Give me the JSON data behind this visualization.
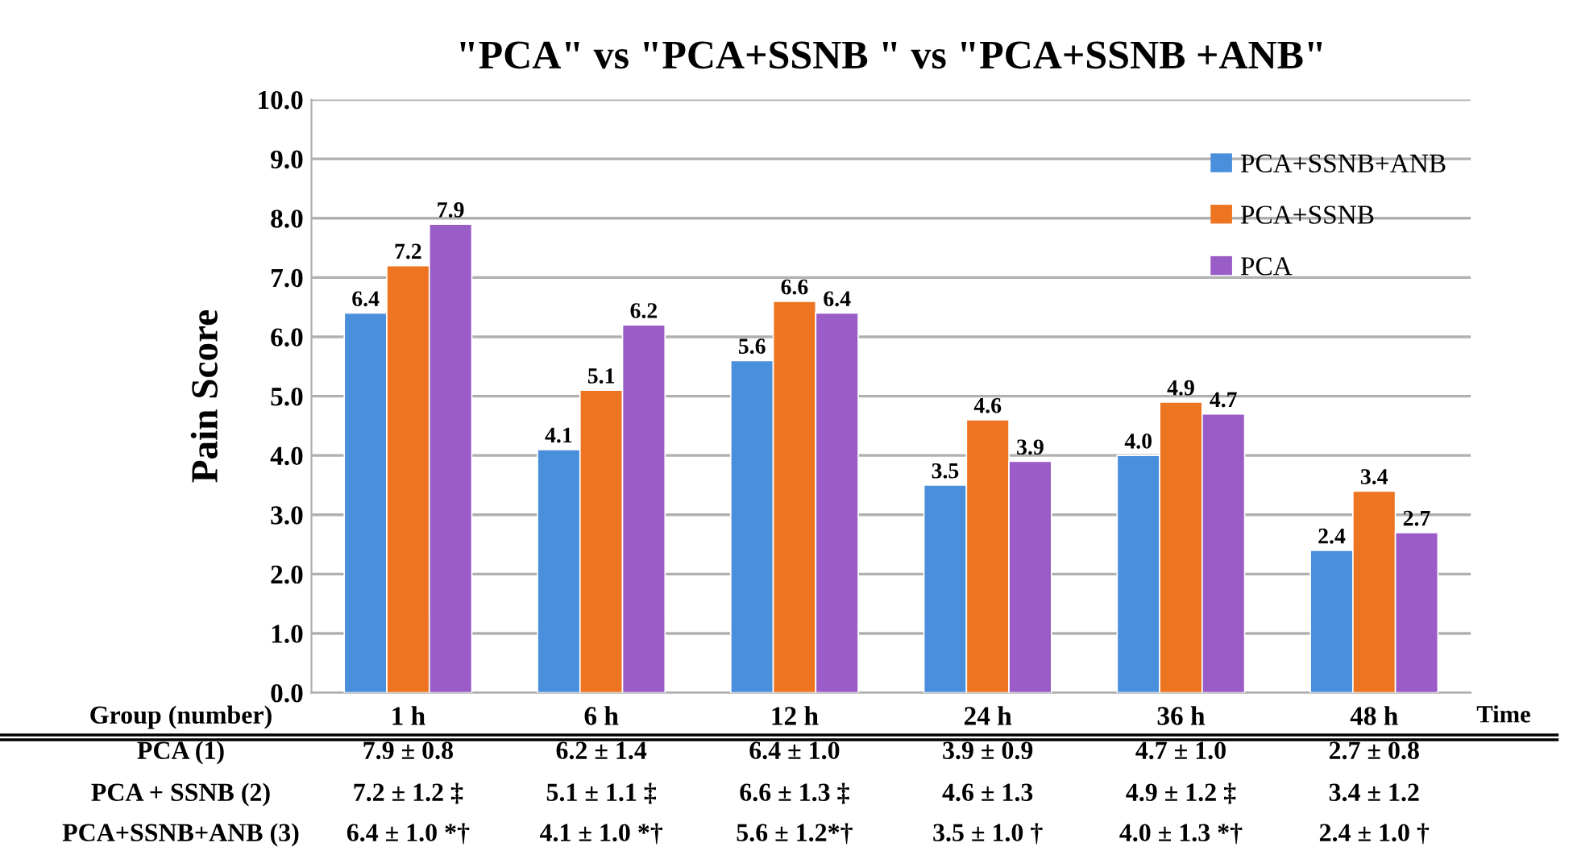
{
  "chart_data": {
    "type": "bar",
    "title": "\"PCA\" vs \"PCA+SSNB \" vs \"PCA+SSNB +ANB\"",
    "ylabel": "Pain Score",
    "xlabel": "Time",
    "categories": [
      "1 h",
      "6 h",
      "12 h",
      "24 h",
      "36 h",
      "48 h"
    ],
    "series": [
      {
        "name": "PCA+SSNB+ANB",
        "color": "#4a8fdc",
        "values": [
          6.4,
          4.1,
          5.6,
          3.5,
          4.0,
          2.4
        ],
        "value_labels": [
          "6.4",
          "4.1",
          "5.6",
          "3.5",
          "4.0",
          "2.4"
        ]
      },
      {
        "name": "PCA+SSNB",
        "color": "#ed7420",
        "values": [
          7.2,
          5.1,
          6.6,
          4.6,
          4.9,
          3.4
        ],
        "value_labels": [
          "7.2",
          "5.1",
          "6.6",
          "4.6",
          "4.9",
          "3.4"
        ]
      },
      {
        "name": "PCA",
        "color": "#9a5cc6",
        "values": [
          7.9,
          6.2,
          6.4,
          3.9,
          4.7,
          2.7
        ],
        "value_labels": [
          "7.9",
          "6.2",
          "6.4",
          "3.9",
          "4.7",
          "2.7"
        ]
      }
    ],
    "ylim": [
      0,
      10
    ],
    "yticks": [
      {
        "value": 0,
        "label": "0.0"
      },
      {
        "value": 1,
        "label": "1.0"
      },
      {
        "value": 2,
        "label": "2.0"
      },
      {
        "value": 3,
        "label": "3.0"
      },
      {
        "value": 4,
        "label": "4.0"
      },
      {
        "value": 5,
        "label": "5.0"
      },
      {
        "value": 6,
        "label": "6.0"
      },
      {
        "value": 7,
        "label": "7.0"
      },
      {
        "value": 8,
        "label": "8.0"
      },
      {
        "value": 9,
        "label": "9.0"
      },
      {
        "value": 10,
        "label": "10.0"
      }
    ],
    "grid": "y",
    "legend": "top right",
    "annotations": [
      "Group (number)",
      "PCA (1)",
      "7.9 ± 0.8",
      "6.2 ± 1.4",
      "6.4 ± 1.0",
      "3.9 ± 0.9",
      "4.7 ± 1.0",
      "2.7 ± 0.8",
      "PCA + SSNB (2)",
      "7.2 ± 1.2 ‡",
      "5.1 ± 1.1 ‡",
      "6.6 ± 1.3 ‡",
      "4.6 ± 1.3",
      "4.9 ± 1.2 ‡",
      "3.4 ± 1.2",
      "PCA+SSNB+ANB (3)",
      "6.4 ± 1.0 *†",
      "4.1 ± 1.0 *†",
      "5.6 ± 1.2*†",
      "3.5 ± 1.0 †",
      "4.0 ± 1.3 *†",
      "2.4 ± 1.0 †"
    ]
  }
}
